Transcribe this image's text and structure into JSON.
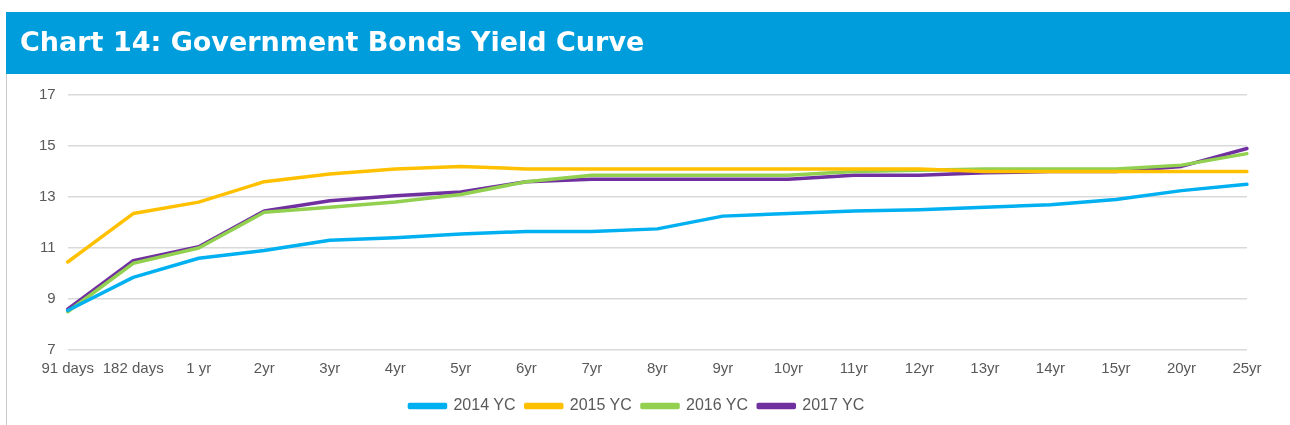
{
  "chart_data": {
    "type": "line",
    "title": "Chart 14: Government Bonds Yield Curve",
    "categories": [
      "91 days",
      "182 days",
      "1 yr",
      "2yr",
      "3yr",
      "4yr",
      "5yr",
      "6yr",
      "7yr",
      "8yr",
      "9yr",
      "10yr",
      "11yr",
      "12yr",
      "13yr",
      "14yr",
      "15yr",
      "20yr",
      "25yr"
    ],
    "series": [
      {
        "name": "2014 YC",
        "color": "#00b0f0",
        "values": [
          8.55,
          9.85,
          10.6,
          10.9,
          11.3,
          11.4,
          11.55,
          11.65,
          11.65,
          11.75,
          12.25,
          12.35,
          12.45,
          12.5,
          12.6,
          12.7,
          12.9,
          13.25,
          13.5
        ]
      },
      {
        "name": "2015 YC",
        "color": "#ffc000",
        "values": [
          10.45,
          12.35,
          12.8,
          13.6,
          13.9,
          14.1,
          14.2,
          14.1,
          14.1,
          14.1,
          14.1,
          14.1,
          14.1,
          14.1,
          14.0,
          14.0,
          14.0,
          14.0,
          14.0
        ]
      },
      {
        "name": "2016 YC",
        "color": "#92d050",
        "values": [
          8.5,
          10.4,
          11.0,
          12.4,
          12.6,
          12.8,
          13.1,
          13.6,
          13.85,
          13.85,
          13.85,
          13.85,
          14.0,
          14.05,
          14.1,
          14.1,
          14.1,
          14.25,
          14.7
        ]
      },
      {
        "name": "2017 YC",
        "color": "#7030a0",
        "values": [
          8.6,
          10.5,
          11.05,
          12.45,
          12.85,
          13.05,
          13.2,
          13.6,
          13.7,
          13.7,
          13.7,
          13.7,
          13.85,
          13.85,
          13.95,
          14.0,
          14.0,
          14.2,
          14.9
        ]
      }
    ],
    "ylim": [
      7,
      17
    ],
    "yticks": [
      7,
      9,
      11,
      13,
      15,
      17
    ],
    "grid": "y",
    "legend": "bottom",
    "marker": "none",
    "line_style": "solid"
  }
}
